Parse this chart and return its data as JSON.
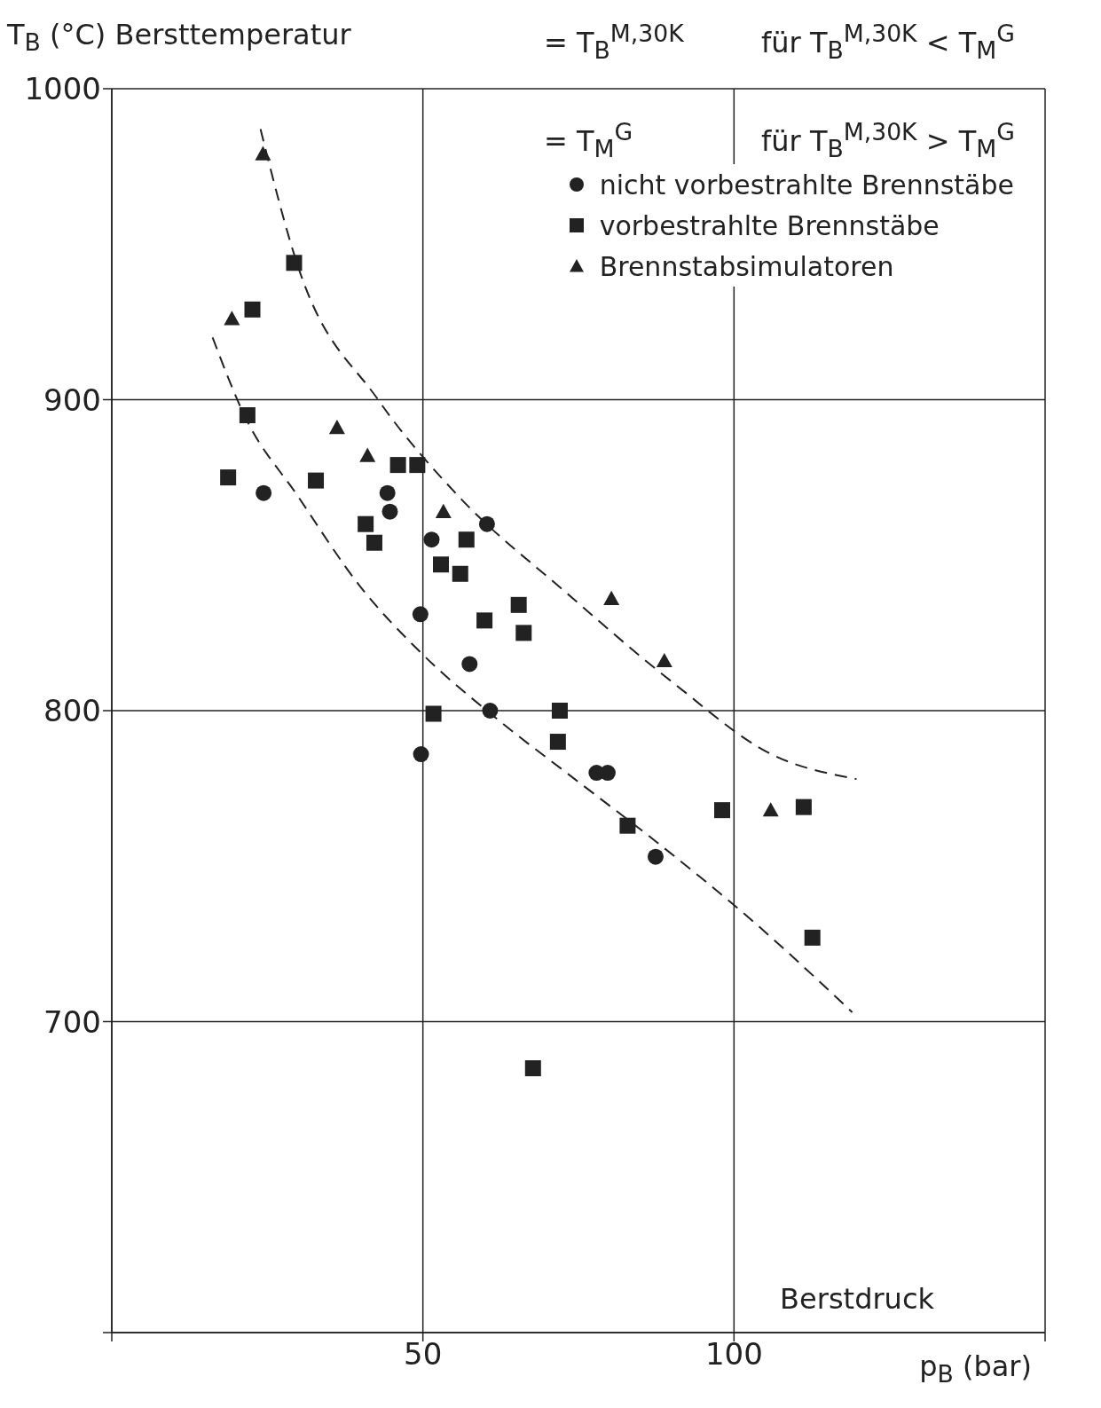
{
  "chart_data": {
    "type": "scatter",
    "ylabel": "T$_{B}$ (°C) Bersttemperatur",
    "xlabel": "p$_{B}$ (bar)",
    "annotations": [
      "= T$_{B}$$^{M,30K}$",
      "für  T$_{B}$$^{M,30K}$ < T$_{M}$$^{G}$",
      "= T$_{M}$$^{G}$",
      "für  T$_{B}$$^{M,30K}$ > T$_{M}$$^{G}$",
      "Berstdruck"
    ],
    "xlim": [
      0,
      150
    ],
    "xticks": [
      {
        "value": 0,
        "label": null
      },
      50,
      100,
      {
        "value": 150,
        "label": null
      }
    ],
    "ylim": [
      600,
      1000
    ],
    "yticks": [
      {
        "value": 600,
        "label": null
      },
      700,
      800,
      900,
      1000
    ],
    "grid": true,
    "legend": "top right",
    "series": [
      {
        "name": "nicht vorbestrahlte Brennstäbe",
        "color": "#222222",
        "marker": "circle",
        "x": [
          24.4,
          44.3,
          44.7,
          51.4,
          60.3,
          49.6,
          57.5,
          60.8,
          49.7,
          77.9,
          79.7,
          87.4
        ],
        "values": [
          870,
          870,
          864,
          855,
          860,
          831,
          815,
          800,
          786,
          780,
          780,
          753
        ]
      },
      {
        "name": "vorbestrahlte Brennstäbe",
        "color": "#222222",
        "marker": "square",
        "x": [
          18.7,
          21.8,
          22.6,
          29.3,
          32.8,
          40.8,
          42.2,
          46.0,
          49.1,
          52.9,
          56.0,
          57.0,
          59.9,
          65.4,
          66.2,
          72.0,
          71.7,
          51.7,
          82.9,
          98.1,
          111.2,
          112.6,
          67.7
        ],
        "values": [
          875,
          895,
          929,
          944,
          874,
          860,
          854,
          879,
          879,
          847,
          844,
          855,
          829,
          834,
          825,
          800,
          790,
          799,
          763,
          768,
          769,
          727,
          685
        ]
      },
      {
        "name": "Brennstabsimulatoren",
        "color": "#222222",
        "marker": "triangle",
        "x": [
          24.3,
          19.3,
          36.2,
          41.1,
          53.3,
          80.3,
          88.8,
          105.9
        ],
        "values": [
          979,
          926,
          891,
          882,
          864,
          836,
          816,
          768
        ]
      },
      {
        "type": "line",
        "color": "#222222",
        "line_style": "dashed",
        "marker": "none",
        "x": [
          23.9,
          29.9,
          42.8,
          55.7,
          73.0,
          90.2,
          106,
          119.7
        ],
        "values": [
          987,
          943,
          900,
          869,
          838,
          809,
          786,
          778
        ]
      },
      {
        "type": "line",
        "color": "#222222",
        "line_style": "dashed",
        "marker": "none",
        "x": [
          16.2,
          21.3,
          29.9,
          39.9,
          50,
          61.5,
          74.4,
          87.4,
          103.2,
          119
        ],
        "values": [
          920,
          895,
          869,
          840,
          818,
          798,
          778,
          758,
          732,
          703
        ]
      }
    ]
  }
}
